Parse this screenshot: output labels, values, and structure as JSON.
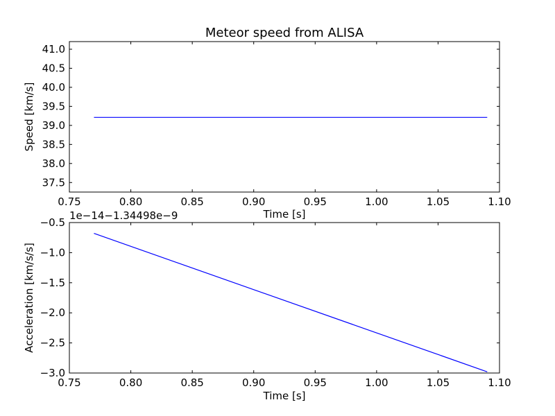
{
  "chart_data": [
    {
      "type": "line",
      "title": "Meteor speed from  ALISA",
      "xlabel": "Time [s]",
      "ylabel": "Speed [km/s]",
      "xlim": [
        0.75,
        1.1
      ],
      "ylim": [
        37.25,
        41.2
      ],
      "x_ticks": [
        0.75,
        0.8,
        0.85,
        0.9,
        0.95,
        1.0,
        1.05,
        1.1
      ],
      "x_tick_labels": [
        "0.75",
        "0.80",
        "0.85",
        "0.90",
        "0.95",
        "1.00",
        "1.05",
        "1.10"
      ],
      "y_ticks": [
        37.5,
        38.0,
        38.5,
        39.0,
        39.5,
        40.0,
        40.5,
        41.0
      ],
      "y_tick_labels": [
        "37.5",
        "38.0",
        "38.5",
        "39.0",
        "39.5",
        "40.0",
        "40.5",
        "41.0"
      ],
      "grid": false,
      "series": [
        {
          "color": "#0000ff",
          "x": [
            0.77,
            1.09
          ],
          "y": [
            39.21,
            39.21
          ]
        }
      ]
    },
    {
      "type": "line",
      "title": "",
      "xlabel": "Time [s]",
      "ylabel": "Acceleration [km/s/s]",
      "offset_text": "1e−14−1.34498e−9",
      "xlim": [
        0.75,
        1.1
      ],
      "ylim": [
        -3.0,
        -0.5
      ],
      "x_ticks": [
        0.75,
        0.8,
        0.85,
        0.9,
        0.95,
        1.0,
        1.05,
        1.1
      ],
      "x_tick_labels": [
        "0.75",
        "0.80",
        "0.85",
        "0.90",
        "0.95",
        "1.00",
        "1.05",
        "1.10"
      ],
      "y_ticks": [
        -3.0,
        -2.5,
        -2.0,
        -1.5,
        -1.0,
        -0.5
      ],
      "y_tick_labels": [
        "−3.0",
        "−2.5",
        "−2.0",
        "−1.5",
        "−1.0",
        "−0.5"
      ],
      "grid": false,
      "series": [
        {
          "color": "#0000ff",
          "x": [
            0.77,
            1.09
          ],
          "y": [
            -0.68,
            -2.98
          ]
        }
      ]
    }
  ]
}
